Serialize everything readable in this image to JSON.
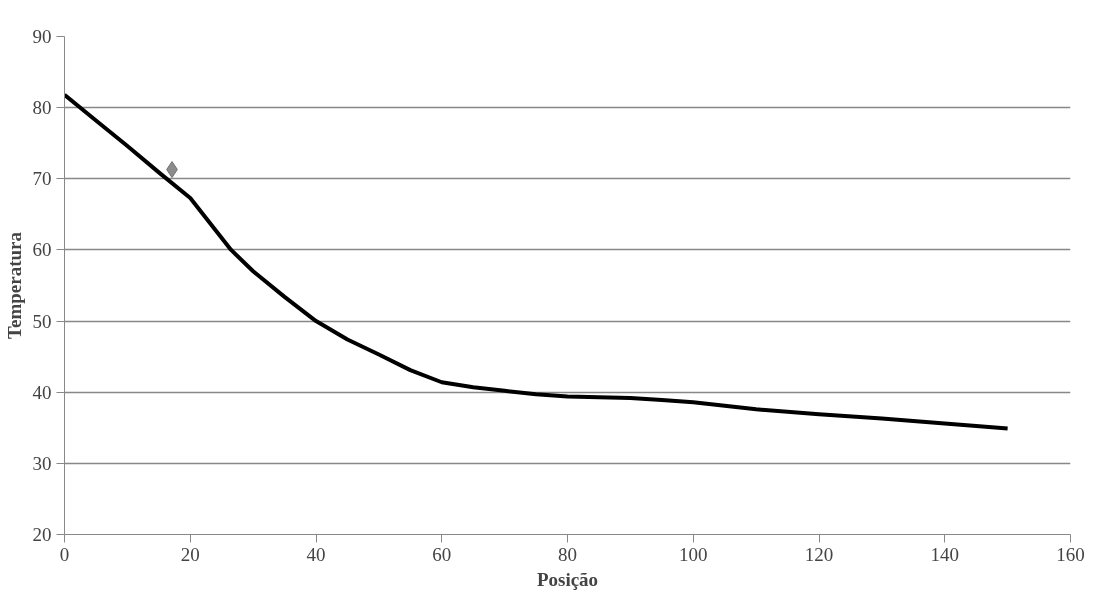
{
  "chart_data": {
    "type": "line",
    "xlabel": "Posição",
    "ylabel": "Temperatura",
    "xlim": [
      0,
      160
    ],
    "xticks": [
      0,
      20,
      40,
      60,
      80,
      100,
      120,
      140,
      160
    ],
    "ylim": [
      20,
      90
    ],
    "yticks": [
      20,
      30,
      40,
      50,
      60,
      70,
      80,
      90
    ],
    "grid": "y",
    "series": [
      {
        "color": "#000000",
        "marker": "none",
        "x": [
          0,
          5,
          10,
          15,
          20,
          26.5,
          30,
          35,
          40,
          45,
          50,
          55,
          60,
          65,
          70,
          75,
          80,
          85,
          90,
          95,
          100,
          105,
          110,
          120,
          130,
          140,
          150
        ],
        "values": [
          81.8,
          78.2,
          74.6,
          70.9,
          67.3,
          60,
          57,
          53.4,
          50,
          47.4,
          45.3,
          43.1,
          41.4,
          40.7,
          40.2,
          39.7,
          39.4,
          39.3,
          39.2,
          38.9,
          38.6,
          38.1,
          37.6,
          36.9,
          36.3,
          35.6,
          34.9
        ]
      },
      {
        "type": "scatter",
        "color": "#8c8c8c",
        "marker": "diamond",
        "x": [
          17.1
        ],
        "values": [
          71.3
        ]
      }
    ]
  }
}
